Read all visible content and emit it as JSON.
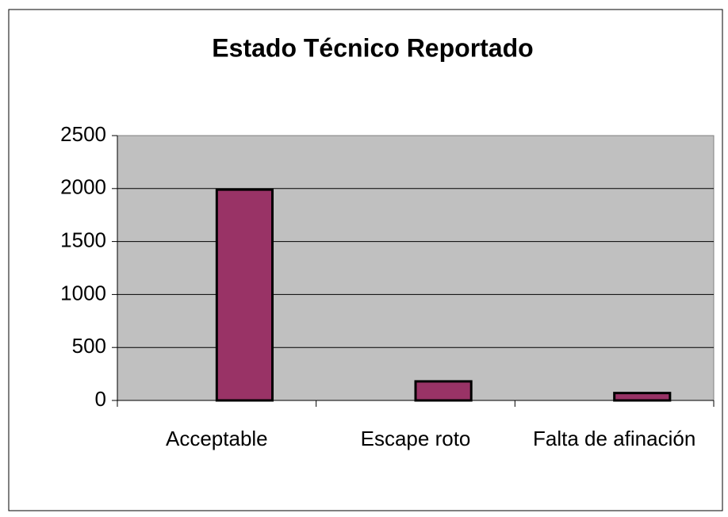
{
  "chart_data": {
    "type": "bar",
    "title": "Estado Técnico Reportado",
    "categories": [
      "Acceptable",
      "Escape roto",
      "Falta de afinación"
    ],
    "values": [
      1990,
      180,
      70
    ],
    "color": "#993366",
    "plot_background": "#c0c0c0",
    "ylim": [
      0,
      2500
    ],
    "yticks": [
      0,
      500,
      1000,
      1500,
      2000,
      2500
    ],
    "grid": true
  }
}
